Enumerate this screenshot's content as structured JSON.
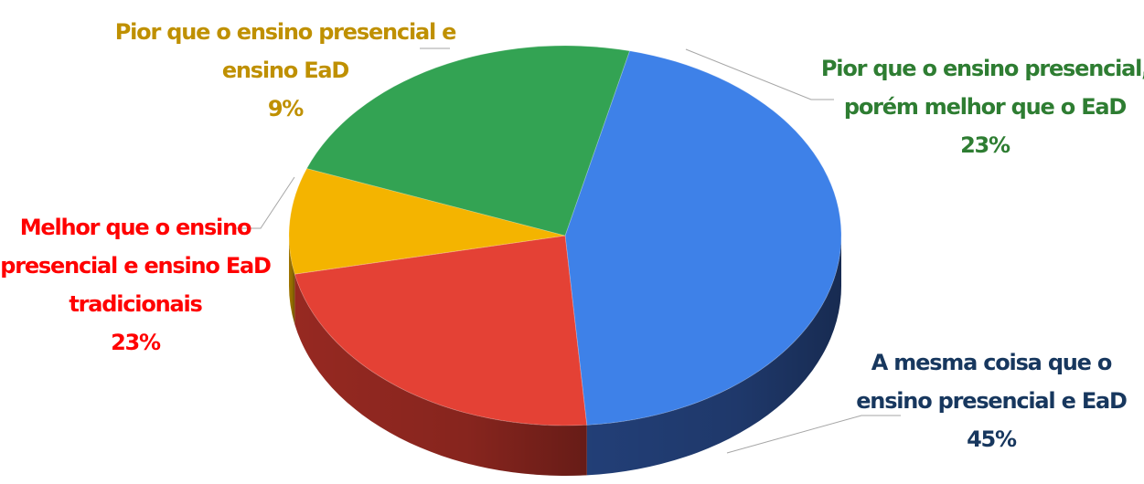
{
  "chart_data": {
    "type": "pie",
    "style": "3d",
    "title": "",
    "slices": [
      {
        "label_lines": [
          "A mesma coisa que o",
          "ensino presencial e EaD"
        ],
        "percent_label": "45%",
        "value": 45,
        "color": "#3e81e8",
        "side_color": "#24427d",
        "label_color": "#17375e"
      },
      {
        "label_lines": [
          "Melhor que o ensino",
          "presencial e ensino EaD",
          "tradicionais"
        ],
        "percent_label": "23%",
        "value": 23,
        "color": "#e44135",
        "side_color": "#9e2b23",
        "label_color": "#ff0000"
      },
      {
        "label_lines": [
          "Pior que o ensino presencial e",
          "ensino EaD"
        ],
        "percent_label": "9%",
        "value": 9,
        "color": "#f4b400",
        "side_color": "#a87c00",
        "label_color": "#bf9000"
      },
      {
        "label_lines": [
          "Pior que o ensino presencial,",
          "porém melhor que o EaD"
        ],
        "percent_label": "23%",
        "value": 23,
        "color": "#33a353",
        "side_color": "#1e6a34",
        "label_color": "#2e7d32"
      }
    ]
  }
}
